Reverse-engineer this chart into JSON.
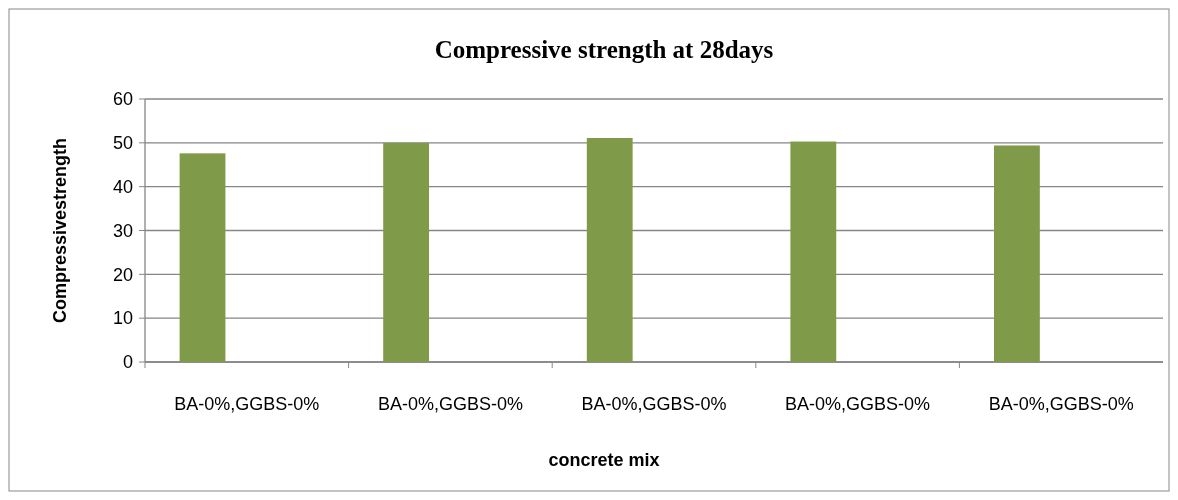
{
  "chart_data": {
    "type": "bar",
    "title": "Compressive strength at 28days",
    "xlabel": "concrete mix",
    "ylabel": "Compressivestrength",
    "categories": [
      "BA-0%,GGBS-0%",
      "BA-0%,GGBS-0%",
      "BA-0%,GGBS-0%",
      "BA-0%,GGBS-0%",
      "BA-0%,GGBS-0%"
    ],
    "series": [
      {
        "color": "#7f9a48",
        "values": [
          47.6,
          50,
          51.1,
          50.3,
          49.4
        ]
      }
    ],
    "ylim": [
      0,
      60
    ],
    "yticks": [
      0,
      10,
      20,
      30,
      40,
      50,
      60
    ],
    "grid": "y"
  }
}
